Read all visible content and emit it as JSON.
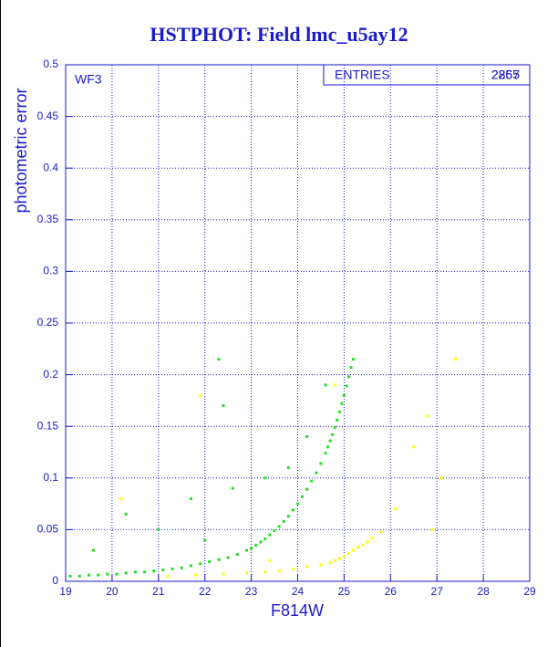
{
  "chart_data": {
    "type": "scatter",
    "title": "HSTPHOT: Field lmc_u5ay12",
    "x_label": "F814W",
    "y_label": "photometric error",
    "panel_label": "WF3",
    "stats": {
      "label": "ENTRIES",
      "values": [
        2865,
        2257
      ]
    },
    "xlim": [
      19,
      29
    ],
    "xticks": [
      19,
      20,
      21,
      22,
      23,
      24,
      25,
      26,
      27,
      28,
      29
    ],
    "ylim": [
      0,
      0.5
    ],
    "yticks": [
      0,
      0.05,
      0.1,
      0.15,
      0.2,
      0.25,
      0.3,
      0.35,
      0.4,
      0.45,
      0.5
    ],
    "grid": true,
    "series": [
      {
        "color": "#22e022",
        "x": [
          19.1,
          19.3,
          19.5,
          19.7,
          19.9,
          20.1,
          20.3,
          20.5,
          20.7,
          20.9,
          21.1,
          21.3,
          21.5,
          21.7,
          21.9,
          22.1,
          22.3,
          22.5,
          22.7,
          22.9,
          23.0,
          23.1,
          23.2,
          23.3,
          23.4,
          23.5,
          23.6,
          23.7,
          23.8,
          23.9,
          24.0,
          24.1,
          24.2,
          24.3,
          24.4,
          24.5,
          24.6,
          24.65,
          24.7,
          24.75,
          24.8,
          24.85,
          24.9,
          24.95,
          25.0,
          25.05,
          25.1,
          25.15,
          25.2,
          22.3,
          22.4,
          22.6,
          23.3,
          21.0,
          20.3,
          24.2,
          23.8,
          22.0,
          19.6,
          21.7,
          24.6
        ],
        "values": [
          0.005,
          0.005,
          0.006,
          0.006,
          0.007,
          0.007,
          0.008,
          0.009,
          0.009,
          0.01,
          0.011,
          0.012,
          0.013,
          0.015,
          0.017,
          0.019,
          0.021,
          0.023,
          0.026,
          0.03,
          0.032,
          0.035,
          0.038,
          0.041,
          0.045,
          0.049,
          0.053,
          0.058,
          0.063,
          0.069,
          0.075,
          0.082,
          0.089,
          0.097,
          0.105,
          0.114,
          0.124,
          0.13,
          0.136,
          0.142,
          0.149,
          0.156,
          0.164,
          0.172,
          0.18,
          0.189,
          0.198,
          0.207,
          0.215,
          0.215,
          0.17,
          0.09,
          0.1,
          0.05,
          0.065,
          0.14,
          0.11,
          0.04,
          0.03,
          0.08,
          0.19
        ]
      },
      {
        "color": "#ffff00",
        "x": [
          21.2,
          21.8,
          22.4,
          22.9,
          23.3,
          23.6,
          23.9,
          24.2,
          24.5,
          24.7,
          24.8,
          24.9,
          25.0,
          25.1,
          25.2,
          25.3,
          25.4,
          25.5,
          25.6,
          25.8,
          26.1,
          26.5,
          26.8,
          27.1,
          27.4,
          26.9,
          20.2,
          21.9,
          23.4,
          24.8
        ],
        "values": [
          0.005,
          0.006,
          0.007,
          0.008,
          0.009,
          0.01,
          0.012,
          0.014,
          0.016,
          0.018,
          0.02,
          0.022,
          0.024,
          0.027,
          0.03,
          0.033,
          0.035,
          0.038,
          0.042,
          0.048,
          0.07,
          0.13,
          0.16,
          0.1,
          0.215,
          0.05,
          0.08,
          0.18,
          0.02,
          0.19
        ]
      }
    ]
  }
}
